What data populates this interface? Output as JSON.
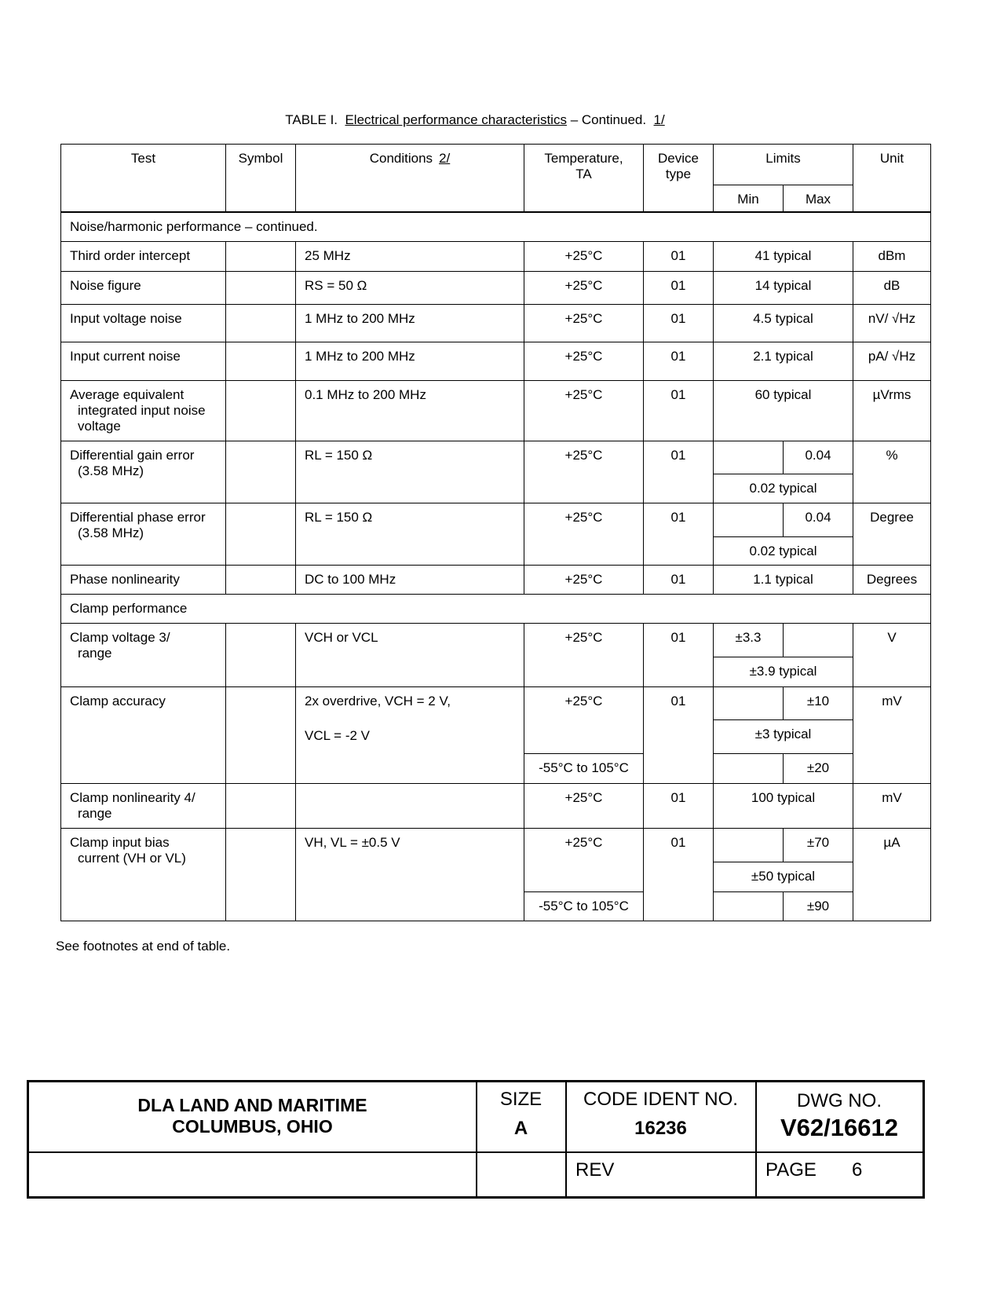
{
  "title": {
    "prefix": "TABLE I.",
    "name": "Electrical performance characteristics",
    "suffix": "– Continued.",
    "note": "1/"
  },
  "header": {
    "test": "Test",
    "symbol": "Symbol",
    "conditions": "Conditions",
    "conditions_note": "2/",
    "temperature": "Temperature,",
    "temperature_sym": "TA",
    "device_type": "Device type",
    "limits": "Limits",
    "min": "Min",
    "max": "Max",
    "unit": "Unit"
  },
  "sections": [
    "Noise/harmonic performance – continued.",
    "Clamp performance"
  ],
  "rows": [
    {
      "test": "Third order intercept",
      "cond": "25 MHz",
      "temp": "+25°C",
      "dev": "01",
      "typ": "41 typical",
      "unit": "dBm"
    },
    {
      "test": "Noise figure",
      "cond": "RS = 50 Ω",
      "temp": "+25°C",
      "dev": "01",
      "typ": "14 typical",
      "unit": "dB"
    },
    {
      "test": "Input voltage noise",
      "cond": "1 MHz to 200 MHz",
      "temp": "+25°C",
      "dev": "01",
      "typ": "4.5 typical",
      "unit": "nV/ √Hz"
    },
    {
      "test": "Input current noise",
      "cond": "1 MHz to 200 MHz",
      "temp": "+25°C",
      "dev": "01",
      "typ": "2.1 typical",
      "unit": "pA/ √Hz"
    },
    {
      "test": "Average equivalent",
      "test2": "integrated input noise voltage",
      "cond": "0.1 MHz to 200 MHz",
      "temp": "+25°C",
      "dev": "01",
      "typ": "60 typical",
      "unit": "µVrms"
    },
    {
      "test": "Differential gain error",
      "test2": "(3.58 MHz)",
      "cond": "RL = 150 Ω",
      "temp": "+25°C",
      "dev": "01",
      "max": "0.04",
      "typ": "0.02 typical",
      "unit": "%"
    },
    {
      "test": "Differential phase error",
      "test2": "(3.58 MHz)",
      "cond": "RL = 150 Ω",
      "temp": "+25°C",
      "dev": "01",
      "max": "0.04",
      "typ": "0.02 typical",
      "unit": "Degree"
    },
    {
      "test": "Phase nonlinearity",
      "cond": "DC to 100 MHz",
      "temp": "+25°C",
      "dev": "01",
      "typ": "1.1 typical",
      "unit": "Degrees"
    },
    {
      "test": "Clamp voltage  3/",
      "test2": "range",
      "cond": "VCH or VCL",
      "temp": "+25°C",
      "dev": "01",
      "min": "±3.3",
      "typ": "±3.9 typical",
      "unit": "V"
    },
    {
      "test": "Clamp accuracy",
      "cond": "2x overdrive, VCH = 2 V,",
      "cond2": "VCL = -2 V",
      "temp": "+25°C",
      "temp2": "-55°C to 105°C",
      "dev": "01",
      "max": "±10",
      "typ": "±3 typical",
      "max2": "±20",
      "unit": "mV"
    },
    {
      "test": "Clamp nonlinearity  4/",
      "test2": "range",
      "cond": "",
      "temp": "+25°C",
      "dev": "01",
      "typ": "100 typical",
      "unit": "mV"
    },
    {
      "test": "Clamp input bias",
      "test2": "current (VH or VL)",
      "cond": "VH, VL = ±0.5 V",
      "temp": "+25°C",
      "temp2": "-55°C to 105°C",
      "dev": "01",
      "max": "±70",
      "typ": "±50 typical",
      "max2": "±90",
      "unit": "µA"
    }
  ],
  "footnote": "See footnotes at end of table.",
  "footer": {
    "org1": "DLA LAND AND MARITIME",
    "org2": "COLUMBUS, OHIO",
    "size_label": "SIZE",
    "size": "A",
    "code_label": "CODE IDENT NO.",
    "code": "16236",
    "dwg_label": "DWG NO.",
    "dwg": "V62/16612",
    "rev_label": "REV",
    "page_label": "PAGE",
    "page": "6"
  }
}
